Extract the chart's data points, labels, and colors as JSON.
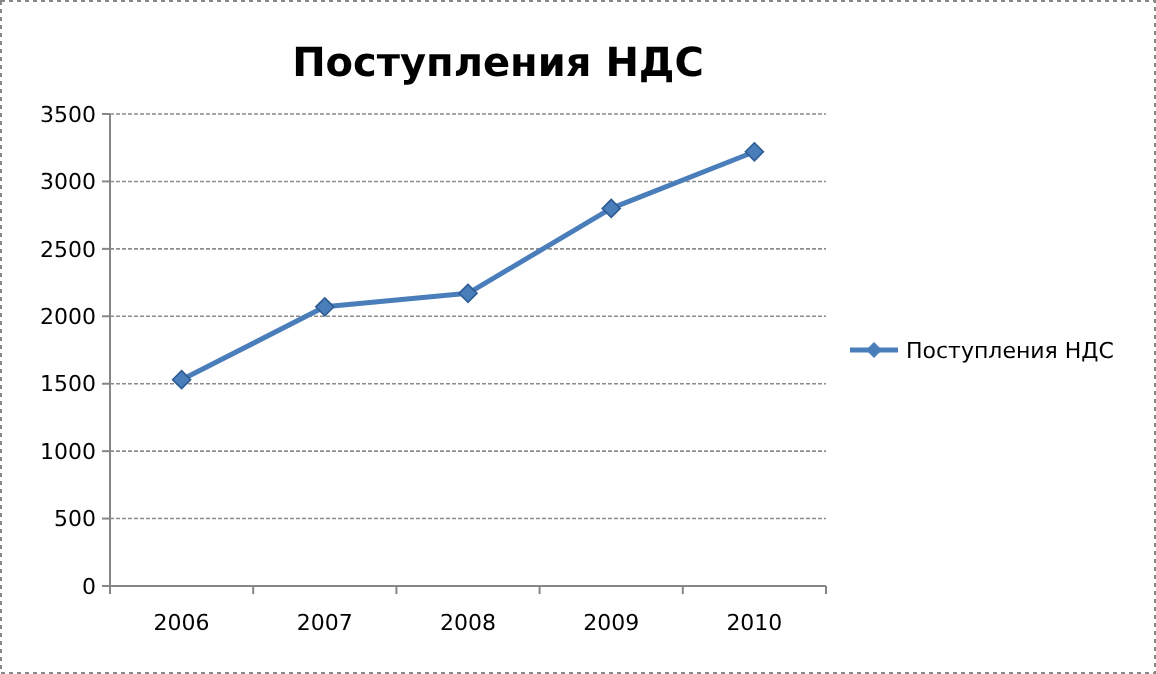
{
  "chart_data": {
    "type": "line",
    "title": "Поступления НДС",
    "categories": [
      "2006",
      "2007",
      "2008",
      "2009",
      "2010"
    ],
    "series": [
      {
        "name": "Поступления НДС",
        "color": "#4a7ebb",
        "values": [
          1530,
          2070,
          2170,
          2800,
          3220
        ]
      }
    ],
    "ylim": [
      0,
      3500
    ],
    "yticks": [
      0,
      500,
      1000,
      1500,
      2000,
      2500,
      3000,
      3500
    ],
    "grid": "y",
    "legend": "right",
    "marker": "diamond"
  }
}
